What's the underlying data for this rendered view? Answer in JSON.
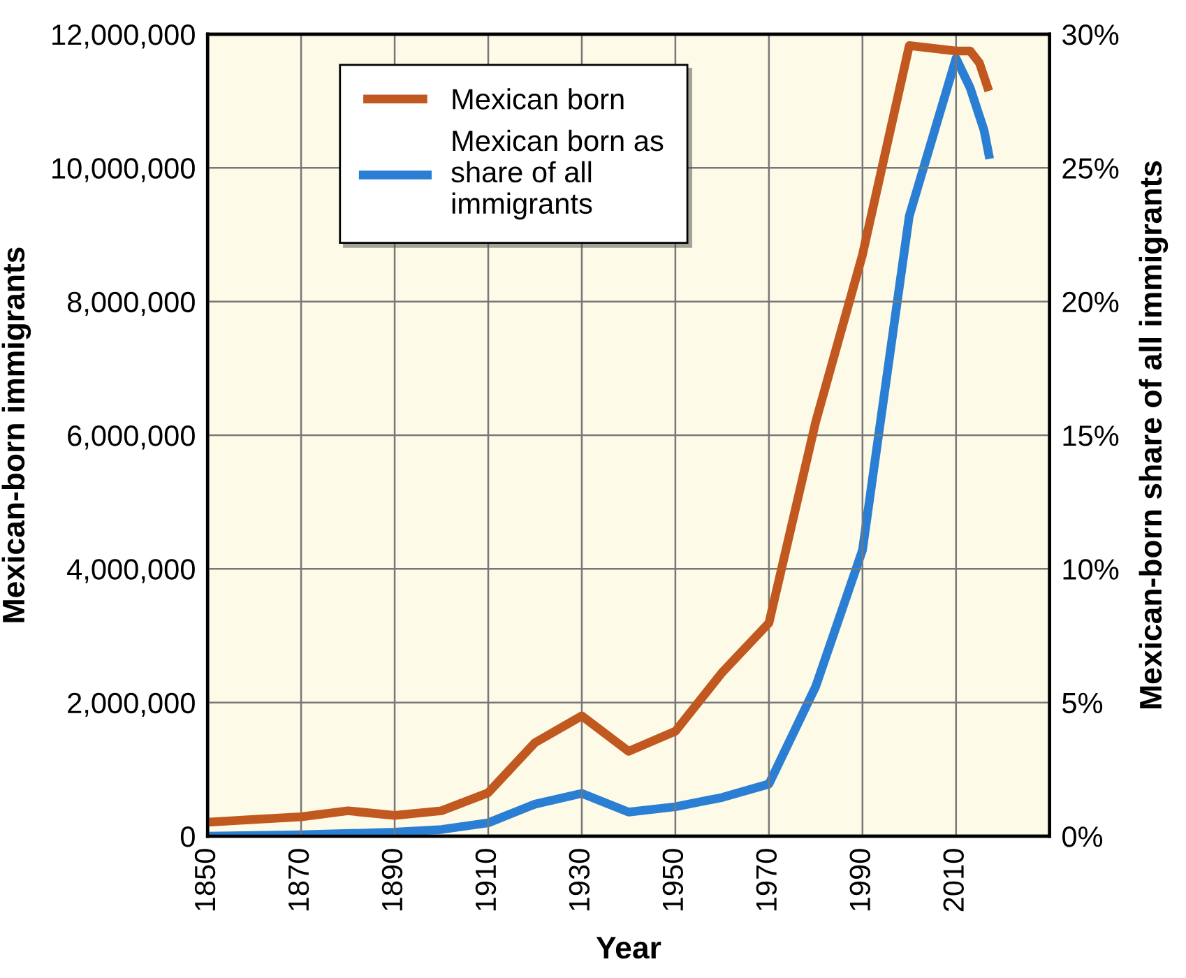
{
  "chart_data": {
    "type": "line",
    "xlabel": "Year",
    "ylabel": "Mexican-born immigrants",
    "y2label": "Mexican-born share of all immigrants",
    "xlim": [
      1850,
      2030
    ],
    "xticks": [
      1850,
      1870,
      1890,
      1910,
      1930,
      1950,
      1970,
      1990,
      2010
    ],
    "ylim": [
      0,
      12000000
    ],
    "yticks": [
      0,
      {
        "value": 2000000,
        "label": "2,000,000"
      },
      {
        "value": 4000000,
        "label": "4,000,000"
      },
      {
        "value": 6000000,
        "label": "6,000,000"
      },
      {
        "value": 8000000,
        "label": "8,000,000"
      },
      {
        "value": 10000000,
        "label": "10,000,000"
      },
      {
        "value": 12000000,
        "label": "12,000,000"
      }
    ],
    "y2lim": [
      0,
      30
    ],
    "y2ticks": [
      {
        "value": 0,
        "label": "0%"
      },
      {
        "value": 5,
        "label": "5%"
      },
      {
        "value": 10,
        "label": "10%"
      },
      {
        "value": 15,
        "label": "15%"
      },
      {
        "value": 20,
        "label": "20%"
      },
      {
        "value": 25,
        "label": "25%"
      },
      {
        "value": 30,
        "label": "30%"
      }
    ],
    "grid": true,
    "legend": "top left",
    "line_style": "solid",
    "series": [
      {
        "name": "Mexican born",
        "color": "#c0581f",
        "x": [
          1850,
          1860,
          1870,
          1880,
          1890,
          1900,
          1910,
          1920,
          1930,
          1940,
          1950,
          1960,
          1970,
          1980,
          1990,
          2000,
          2010,
          2013,
          2015,
          2017
        ],
        "values": [
          210000,
          250000,
          290000,
          380000,
          310000,
          380000,
          650000,
          1400000,
          1800000,
          1270000,
          1570000,
          2450000,
          3190000,
          6200000,
          8700000,
          11830000,
          11750000,
          11750000,
          11570000,
          11150000
        ]
      },
      {
        "name": "Mexican born as share of all immigrants",
        "color": "#2a7fd4",
        "axis": "y2",
        "x": [
          1850,
          1870,
          1890,
          1900,
          1910,
          1920,
          1930,
          1940,
          1950,
          1960,
          1970,
          1980,
          1990,
          2000,
          2010,
          2013,
          2016,
          2017
        ],
        "values": [
          0,
          0.05,
          0.15,
          0.25,
          0.5,
          1.2,
          1.6,
          0.9,
          1.1,
          1.45,
          1.95,
          5.6,
          10.7,
          23.2,
          29.1,
          28.0,
          26.4,
          25.5
        ]
      }
    ]
  }
}
